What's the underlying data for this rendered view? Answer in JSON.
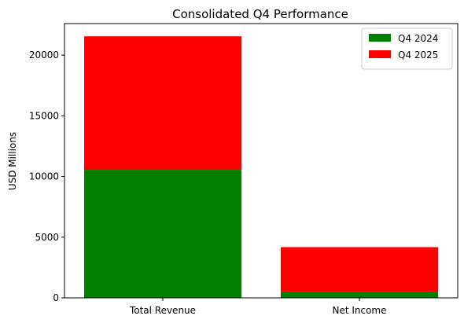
{
  "chart_data": {
    "type": "bar",
    "stacked": true,
    "title": "Consolidated Q4 Performance",
    "xlabel": "",
    "ylabel": "USD Millions",
    "categories": [
      "Total Revenue",
      "Net Income"
    ],
    "series": [
      {
        "name": "Q4 2024",
        "values": [
          10550,
          480
        ],
        "color": "#008000"
      },
      {
        "name": "Q4 2025",
        "values": [
          11000,
          3700
        ],
        "color": "#ff0000"
      }
    ],
    "ylim": [
      0,
      22600
    ],
    "yticks": [
      0,
      5000,
      10000,
      15000,
      20000
    ],
    "grid": false,
    "legend_position": "top-right"
  }
}
